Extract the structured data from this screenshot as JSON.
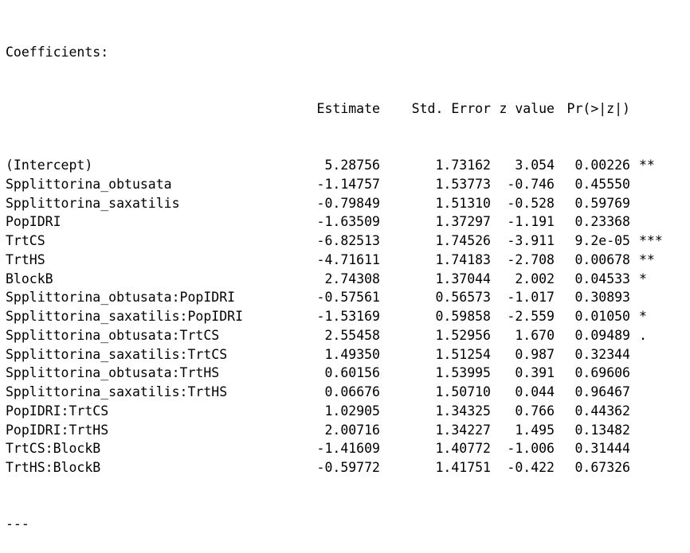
{
  "heading": "Coefficients:",
  "columns": {
    "estimate": "Estimate",
    "std_error": "Std. Error",
    "z_value": "z value",
    "p_value": "Pr(>|z|)"
  },
  "rows": [
    {
      "term": "(Intercept)",
      "estimate": "5.28756",
      "std_error": "1.73162",
      "z": "3.054",
      "p": "0.00226",
      "sig": "**"
    },
    {
      "term": "Spplittorina_obtusata",
      "estimate": "-1.14757",
      "std_error": "1.53773",
      "z": "-0.746",
      "p": "0.45550",
      "sig": ""
    },
    {
      "term": "Spplittorina_saxatilis",
      "estimate": "-0.79849",
      "std_error": "1.51310",
      "z": "-0.528",
      "p": "0.59769",
      "sig": ""
    },
    {
      "term": "PopIDRI",
      "estimate": "-1.63509",
      "std_error": "1.37297",
      "z": "-1.191",
      "p": "0.23368",
      "sig": ""
    },
    {
      "term": "TrtCS",
      "estimate": "-6.82513",
      "std_error": "1.74526",
      "z": "-3.911",
      "p": "9.2e-05",
      "sig": "***"
    },
    {
      "term": "TrtHS",
      "estimate": "-4.71611",
      "std_error": "1.74183",
      "z": "-2.708",
      "p": "0.00678",
      "sig": "**"
    },
    {
      "term": "BlockB",
      "estimate": "2.74308",
      "std_error": "1.37044",
      "z": "2.002",
      "p": "0.04533",
      "sig": "*"
    },
    {
      "term": "Spplittorina_obtusata:PopIDRI",
      "estimate": "-0.57561",
      "std_error": "0.56573",
      "z": "-1.017",
      "p": "0.30893",
      "sig": ""
    },
    {
      "term": "Spplittorina_saxatilis:PopIDRI",
      "estimate": "-1.53169",
      "std_error": "0.59858",
      "z": "-2.559",
      "p": "0.01050",
      "sig": "*"
    },
    {
      "term": "Spplittorina_obtusata:TrtCS",
      "estimate": "2.55458",
      "std_error": "1.52956",
      "z": "1.670",
      "p": "0.09489",
      "sig": "."
    },
    {
      "term": "Spplittorina_saxatilis:TrtCS",
      "estimate": "1.49350",
      "std_error": "1.51254",
      "z": "0.987",
      "p": "0.32344",
      "sig": ""
    },
    {
      "term": "Spplittorina_obtusata:TrtHS",
      "estimate": "0.60156",
      "std_error": "1.53995",
      "z": "0.391",
      "p": "0.69606",
      "sig": ""
    },
    {
      "term": "Spplittorina_saxatilis:TrtHS",
      "estimate": "0.06676",
      "std_error": "1.50710",
      "z": "0.044",
      "p": "0.96467",
      "sig": ""
    },
    {
      "term": "PopIDRI:TrtCS",
      "estimate": "1.02905",
      "std_error": "1.34325",
      "z": "0.766",
      "p": "0.44362",
      "sig": ""
    },
    {
      "term": "PopIDRI:TrtHS",
      "estimate": "2.00716",
      "std_error": "1.34227",
      "z": "1.495",
      "p": "0.13482",
      "sig": ""
    },
    {
      "term": "TrtCS:BlockB",
      "estimate": "-1.41609",
      "std_error": "1.40772",
      "z": "-1.006",
      "p": "0.31444",
      "sig": ""
    },
    {
      "term": "TrtHS:BlockB",
      "estimate": "-0.59772",
      "std_error": "1.41751",
      "z": "-0.422",
      "p": "0.67326",
      "sig": ""
    }
  ],
  "separator": "---"
}
